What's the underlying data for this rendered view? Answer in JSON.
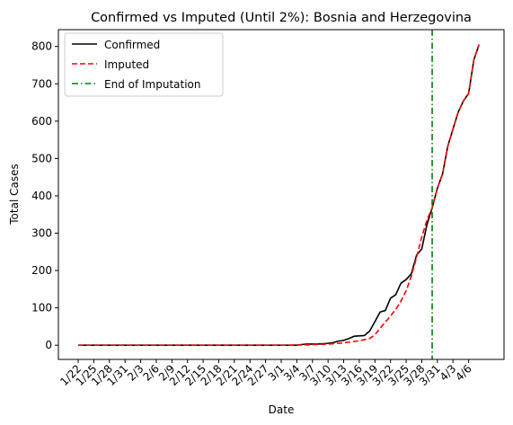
{
  "chart_data": {
    "type": "line",
    "title": "Confirmed vs Imputed (Until 2%): Bosnia and Herzegovina",
    "xlabel": "Date",
    "ylabel": "Total Cases",
    "x_tick_labels": [
      "1/22",
      "1/25",
      "1/28",
      "1/31",
      "2/3",
      "2/6",
      "2/9",
      "2/12",
      "2/15",
      "2/18",
      "2/21",
      "2/24",
      "2/27",
      "3/1",
      "3/4",
      "3/7",
      "3/10",
      "3/13",
      "3/16",
      "3/19",
      "3/22",
      "3/25",
      "3/28",
      "3/31",
      "4/3",
      "4/6"
    ],
    "x_day_offsets": [
      0,
      3,
      6,
      9,
      12,
      15,
      18,
      21,
      24,
      27,
      30,
      33,
      36,
      39,
      42,
      45,
      48,
      51,
      54,
      57,
      60,
      63,
      66,
      69,
      72,
      75
    ],
    "y_ticks": [
      0,
      100,
      200,
      300,
      400,
      500,
      600,
      700,
      800
    ],
    "ylim": [
      -38,
      845
    ],
    "xlim": [
      -3.8,
      81.8
    ],
    "grid": false,
    "legend_position": "top-left",
    "end_of_imputation_day": 68,
    "series": [
      {
        "name": "Confirmed",
        "color": "#000000",
        "style": "solid",
        "x": [
          0,
          1,
          2,
          3,
          4,
          5,
          6,
          7,
          8,
          9,
          10,
          11,
          12,
          13,
          14,
          15,
          16,
          17,
          18,
          19,
          20,
          21,
          22,
          23,
          24,
          25,
          26,
          27,
          28,
          29,
          30,
          31,
          32,
          33,
          34,
          35,
          36,
          37,
          38,
          39,
          40,
          41,
          42,
          43,
          44,
          45,
          46,
          47,
          48,
          49,
          50,
          51,
          52,
          53,
          54,
          55,
          56,
          57,
          58,
          59,
          60,
          61,
          62,
          63,
          64,
          65,
          66,
          67,
          68,
          69,
          70,
          71,
          72,
          73,
          74,
          75,
          76,
          77
        ],
        "values": [
          0,
          0,
          0,
          0,
          0,
          0,
          0,
          0,
          0,
          0,
          0,
          0,
          0,
          0,
          0,
          0,
          0,
          0,
          0,
          0,
          0,
          0,
          0,
          0,
          0,
          0,
          0,
          0,
          0,
          0,
          0,
          0,
          0,
          0,
          0,
          0,
          0,
          0,
          0,
          0,
          0,
          0,
          0,
          2,
          3,
          3,
          3,
          4,
          5,
          7,
          11,
          13,
          18,
          24,
          25,
          26,
          38,
          63,
          89,
          93,
          126,
          135,
          166,
          176,
          191,
          241,
          258,
          323,
          368,
          420,
          459,
          533,
          579,
          624,
          654,
          674,
          764,
          805
        ]
      },
      {
        "name": "Imputed",
        "color": "#ff0000",
        "style": "dashed",
        "x": [
          0,
          10,
          20,
          30,
          40,
          42,
          44,
          46,
          48,
          50,
          52,
          54,
          56,
          57,
          58,
          59,
          60,
          61,
          62,
          63,
          64,
          65,
          66,
          67,
          68,
          69,
          70,
          71,
          72,
          73,
          74,
          75,
          76,
          77
        ],
        "values": [
          0,
          0,
          0,
          0,
          0,
          0.5,
          1,
          2,
          3,
          5,
          8,
          12,
          18,
          28,
          45,
          62,
          78,
          96,
          118,
          146,
          185,
          235,
          290,
          335,
          368,
          420,
          459,
          533,
          579,
          624,
          654,
          674,
          764,
          805
        ]
      }
    ],
    "vertical_line": {
      "name": "End of Imputation",
      "color": "#008000",
      "style": "dashdot"
    }
  }
}
